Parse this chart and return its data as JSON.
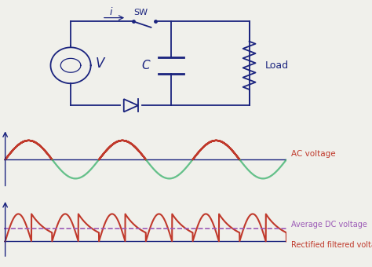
{
  "bg_color": "#f0f0eb",
  "circuit_color": "#1a237e",
  "signal_red": "#c0392b",
  "signal_green": "#27ae60",
  "dashed_purple": "#9b59b6",
  "label_ac": "AC voltage",
  "label_avg": "Average DC voltage",
  "label_rect": "Rectified filtered voltage",
  "label_V": "V",
  "label_C": "C",
  "label_i": "i",
  "label_SW": "SW",
  "label_Load": "Load"
}
